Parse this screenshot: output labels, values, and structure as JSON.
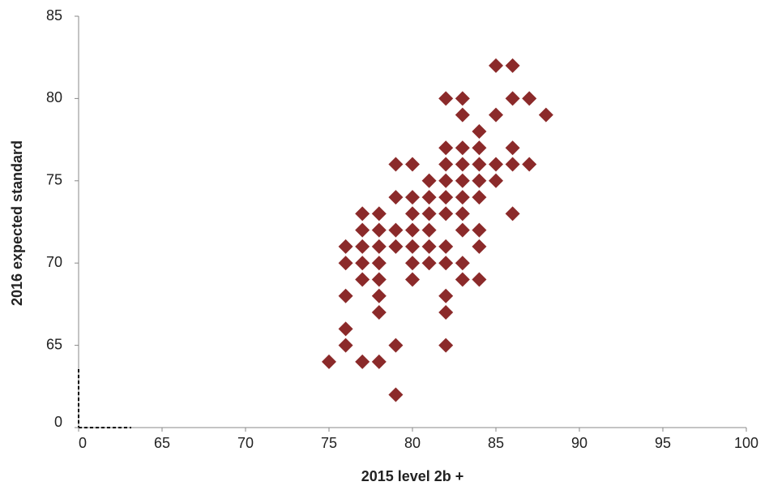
{
  "chart_data": {
    "type": "scatter",
    "xlabel": "2015 level 2b +",
    "ylabel": "2016 expected standard",
    "xlim": [
      60,
      100
    ],
    "ylim": [
      60,
      85
    ],
    "xticks": [
      {
        "value": 60,
        "label": "0"
      },
      65,
      70,
      75,
      80,
      85,
      90,
      95,
      100
    ],
    "yticks": [
      {
        "value": 60,
        "label": "0"
      },
      65,
      70,
      75,
      80,
      85
    ],
    "grid": false,
    "series": [
      {
        "color": "#8b2a2a",
        "x": [
          75,
          76,
          76,
          76,
          76,
          76,
          77,
          77,
          77,
          77,
          77,
          77,
          78,
          78,
          78,
          78,
          78,
          78,
          78,
          78,
          79,
          79,
          79,
          79,
          79,
          79,
          80,
          80,
          80,
          80,
          80,
          80,
          80,
          81,
          81,
          81,
          81,
          81,
          81,
          82,
          82,
          82,
          82,
          82,
          82,
          82,
          82,
          82,
          82,
          82,
          83,
          83,
          83,
          83,
          83,
          83,
          83,
          83,
          83,
          83,
          84,
          84,
          84,
          84,
          84,
          84,
          84,
          84,
          85,
          85,
          85,
          85,
          86,
          86,
          86,
          86,
          86,
          87,
          87,
          88
        ],
        "values": [
          64,
          71,
          70,
          68,
          66,
          65,
          73,
          72,
          71,
          70,
          69,
          64,
          73,
          72,
          71,
          70,
          69,
          68,
          67,
          64,
          76,
          74,
          72,
          71,
          65,
          62,
          76,
          74,
          73,
          72,
          71,
          70,
          69,
          75,
          74,
          73,
          72,
          71,
          70,
          80,
          77,
          76,
          75,
          74,
          73,
          71,
          70,
          68,
          67,
          65,
          80,
          79,
          77,
          76,
          75,
          74,
          73,
          72,
          70,
          69,
          78,
          77,
          76,
          75,
          74,
          72,
          71,
          69,
          82,
          79,
          76,
          75,
          82,
          80,
          77,
          76,
          73,
          80,
          76,
          79
        ]
      }
    ]
  }
}
